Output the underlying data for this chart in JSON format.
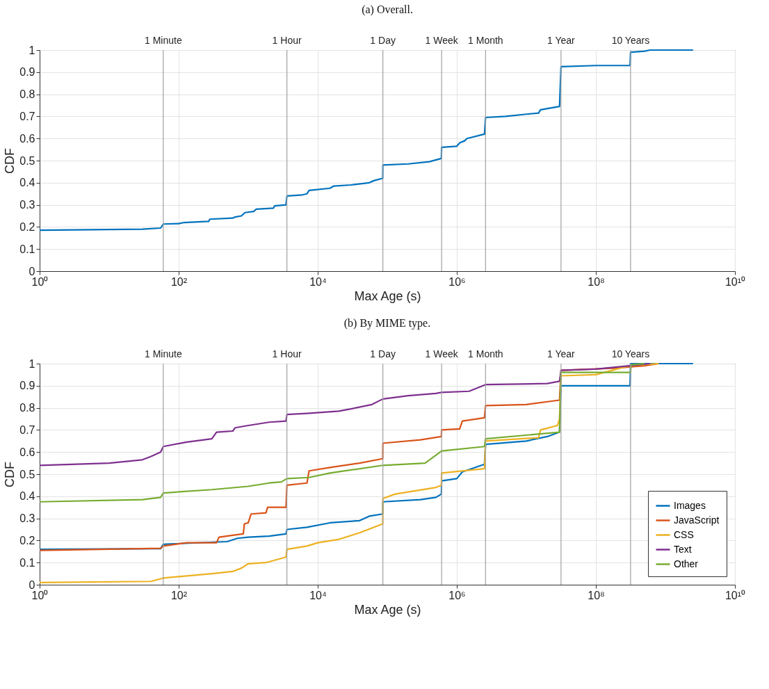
{
  "chart_data": [
    {
      "type": "line",
      "title": "(a) Overall.",
      "xlabel": "Max Age (s)",
      "ylabel": "CDF",
      "log": "x",
      "xlim": [
        1,
        10000000000
      ],
      "xticks": [
        {
          "value": 1,
          "label": "10⁰"
        },
        {
          "value": 100,
          "label": "10²"
        },
        {
          "value": 10000,
          "label": "10⁴"
        },
        {
          "value": 1000000,
          "label": "10⁶"
        },
        {
          "value": 100000000,
          "label": "10⁸"
        },
        {
          "value": 10000000000,
          "label": "10¹⁰"
        }
      ],
      "ylim": [
        0,
        1
      ],
      "yticks": [
        0,
        0.1,
        0.2,
        0.3,
        0.4,
        0.5,
        0.6,
        0.7,
        0.8,
        0.9,
        1
      ],
      "grid": true,
      "legend": false,
      "line_style": "solid",
      "marker": "none",
      "ref_lines": [
        {
          "axis": "x",
          "value": 60,
          "label": "1 Minute",
          "color": "#a0a0a0"
        },
        {
          "axis": "x",
          "value": 3600,
          "label": "1 Hour",
          "color": "#a0a0a0"
        },
        {
          "axis": "x",
          "value": 86400,
          "label": "1 Day",
          "color": "#a0a0a0"
        },
        {
          "axis": "x",
          "value": 604800,
          "label": "1 Week",
          "color": "#a0a0a0"
        },
        {
          "axis": "x",
          "value": 2592000,
          "label": "1 Month",
          "color": "#a0a0a0"
        },
        {
          "axis": "x",
          "value": 31536000,
          "label": "1 Year",
          "color": "#a0a0a0"
        },
        {
          "axis": "x",
          "value": 315360000,
          "label": "10 Years",
          "color": "#a0a0a0"
        }
      ],
      "series": [
        {
          "color": "#0072bd",
          "x": [
            1,
            30,
            55,
            60,
            100,
            120,
            270,
            280,
            600,
            650,
            800,
            900,
            1200,
            1300,
            2300,
            2400,
            3500,
            3600,
            6000,
            7000,
            7500,
            15000,
            17000,
            30000,
            55000,
            65000,
            86000,
            86400,
            200000,
            400000,
            600000,
            604800,
            1000000,
            1100000,
            1300000,
            1400000,
            2500000,
            2592000,
            5000000,
            10000000,
            15000000,
            16000000,
            30000000,
            31536000,
            100000000,
            310000000,
            315360000,
            500000000,
            600000000,
            2500000000
          ],
          "values": [
            0.185,
            0.19,
            0.195,
            0.213,
            0.215,
            0.22,
            0.225,
            0.235,
            0.24,
            0.245,
            0.25,
            0.265,
            0.27,
            0.28,
            0.285,
            0.295,
            0.3,
            0.34,
            0.345,
            0.35,
            0.365,
            0.375,
            0.385,
            0.39,
            0.4,
            0.41,
            0.42,
            0.48,
            0.485,
            0.495,
            0.51,
            0.56,
            0.565,
            0.58,
            0.59,
            0.6,
            0.62,
            0.695,
            0.7,
            0.71,
            0.715,
            0.73,
            0.745,
            0.925,
            0.93,
            0.93,
            0.99,
            0.995,
            1.0,
            1.0
          ]
        }
      ]
    },
    {
      "type": "line",
      "title": "(b) By MIME type.",
      "xlabel": "Max Age (s)",
      "ylabel": "CDF",
      "log": "x",
      "xlim": [
        1,
        10000000000
      ],
      "xticks": [
        {
          "value": 1,
          "label": "10⁰"
        },
        {
          "value": 100,
          "label": "10²"
        },
        {
          "value": 10000,
          "label": "10⁴"
        },
        {
          "value": 1000000,
          "label": "10⁶"
        },
        {
          "value": 100000000,
          "label": "10⁸"
        },
        {
          "value": 10000000000,
          "label": "10¹⁰"
        }
      ],
      "ylim": [
        0,
        1
      ],
      "yticks": [
        0,
        0.1,
        0.2,
        0.3,
        0.4,
        0.5,
        0.6,
        0.7,
        0.8,
        0.9,
        1
      ],
      "grid": true,
      "legend": "bottom right",
      "line_style": "solid",
      "marker": "none",
      "ref_lines": [
        {
          "axis": "x",
          "value": 60,
          "label": "1 Minute",
          "color": "#a0a0a0"
        },
        {
          "axis": "x",
          "value": 3600,
          "label": "1 Hour",
          "color": "#a0a0a0"
        },
        {
          "axis": "x",
          "value": 86400,
          "label": "1 Day",
          "color": "#a0a0a0"
        },
        {
          "axis": "x",
          "value": 604800,
          "label": "1 Week",
          "color": "#a0a0a0"
        },
        {
          "axis": "x",
          "value": 2592000,
          "label": "1 Month",
          "color": "#a0a0a0"
        },
        {
          "axis": "x",
          "value": 31536000,
          "label": "1 Year",
          "color": "#a0a0a0"
        },
        {
          "axis": "x",
          "value": 315360000,
          "label": "10 Years",
          "color": "#a0a0a0"
        }
      ],
      "series": [
        {
          "name": "Images",
          "color": "#0072bd",
          "x": [
            1,
            55,
            60,
            300,
            500,
            700,
            1000,
            2000,
            3500,
            3600,
            7000,
            15000,
            40000,
            55000,
            86000,
            86400,
            300000,
            500000,
            600000,
            604800,
            1000000,
            1200000,
            2500000,
            2592000,
            10000000,
            20000000,
            30000000,
            31536000,
            310000000,
            315360000,
            2500000000
          ],
          "values": [
            0.16,
            0.163,
            0.183,
            null,
            0.195,
            0.21,
            0.215,
            0.22,
            0.23,
            0.25,
            0.26,
            0.28,
            0.29,
            0.31,
            0.32,
            0.375,
            0.385,
            0.395,
            0.41,
            0.47,
            0.48,
            0.51,
            0.545,
            0.635,
            0.65,
            0.67,
            0.69,
            0.9,
            0.9,
            1.0,
            1.0
          ]
        },
        {
          "name": "JavaScript",
          "color": "#d95319",
          "x": [
            1,
            55,
            60,
            130,
            350,
            380,
            650,
            850,
            880,
            1000,
            1100,
            1800,
            1900,
            3500,
            3600,
            7000,
            7500,
            15000,
            40000,
            86000,
            86400,
            300000,
            600000,
            604800,
            1100000,
            1200000,
            2500000,
            2592000,
            10000000,
            30000000,
            31536000,
            200000000,
            315360000,
            500000000,
            800000000
          ],
          "values": [
            0.155,
            0.165,
            0.175,
            0.19,
            0.19,
            0.215,
            0.225,
            0.23,
            0.275,
            0.28,
            0.32,
            0.325,
            0.35,
            0.35,
            0.45,
            0.46,
            0.515,
            0.53,
            0.55,
            0.57,
            0.64,
            0.655,
            0.67,
            0.7,
            0.705,
            0.74,
            0.755,
            0.81,
            0.815,
            0.835,
            0.97,
            0.98,
            0.985,
            0.99,
            1.0
          ]
        },
        {
          "name": "CSS",
          "color": "#edb120",
          "x": [
            1,
            40,
            60,
            130,
            300,
            600,
            800,
            1000,
            1800,
            3500,
            3600,
            7000,
            10000,
            20000,
            40000,
            86000,
            86400,
            130000,
            500000,
            600000,
            604800,
            2500000,
            2592000,
            15000000,
            16000000,
            28000000,
            30000000,
            31536000,
            100000000,
            300000000,
            800000000
          ],
          "values": [
            0.01,
            0.015,
            0.03,
            0.04,
            0.05,
            0.06,
            0.075,
            0.095,
            0.1,
            0.125,
            0.16,
            0.175,
            0.19,
            0.205,
            0.235,
            0.275,
            0.39,
            0.41,
            0.44,
            0.45,
            0.505,
            0.525,
            0.65,
            0.665,
            0.7,
            0.72,
            0.75,
            0.945,
            0.95,
            0.99,
            1.0
          ]
        },
        {
          "name": "Text",
          "color": "#7e2f8e",
          "x": [
            1,
            10,
            30,
            40,
            55,
            60,
            130,
            300,
            350,
            600,
            650,
            1000,
            2000,
            3500,
            3600,
            7000,
            20000,
            30000,
            60000,
            86400,
            200000,
            500000,
            604800,
            1500000,
            2592000,
            20000000,
            30000000,
            31536000,
            100000000,
            300000000,
            600000000
          ],
          "values": [
            0.54,
            0.55,
            0.565,
            0.58,
            0.6,
            0.625,
            0.645,
            0.66,
            0.69,
            0.695,
            0.71,
            0.72,
            0.735,
            0.74,
            0.77,
            0.775,
            0.785,
            0.795,
            0.815,
            0.84,
            0.855,
            0.865,
            0.87,
            0.875,
            0.905,
            0.91,
            0.92,
            0.97,
            0.975,
            0.99,
            1.0
          ]
        },
        {
          "name": "Other",
          "color": "#77ac30",
          "x": [
            1,
            30,
            55,
            60,
            300,
            1000,
            2000,
            3000,
            3600,
            7500,
            15000,
            86400,
            350000,
            604800,
            2500000,
            2592000,
            30000000,
            31536000,
            315360000,
            320000000,
            500000000
          ],
          "values": [
            0.375,
            0.385,
            0.395,
            0.415,
            0.43,
            0.445,
            0.46,
            0.465,
            0.48,
            0.485,
            0.505,
            0.54,
            0.55,
            0.605,
            0.625,
            0.66,
            0.69,
            0.96,
            0.96,
            0.995,
            1.0
          ]
        }
      ]
    }
  ]
}
